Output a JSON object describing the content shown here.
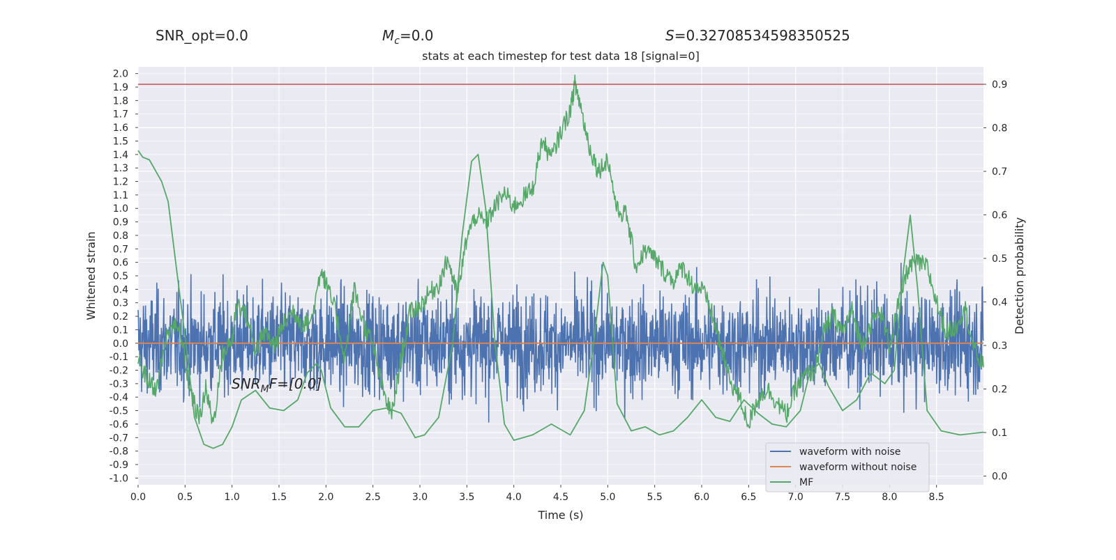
{
  "header": {
    "snr_opt": "SNR_opt=0.0",
    "mc_prefix": "M",
    "mc_sub": "c",
    "mc_value": "=0.0",
    "s_prefix": "S",
    "s_value": "=0.32708534598350525"
  },
  "chart_data": {
    "type": "line",
    "title": "stats at each timestep for test data 18 [signal=0]",
    "xlabel": "Time (s)",
    "ylabel_left": "Whitened strain",
    "ylabel_right": "Detection probability",
    "xlim": [
      0.0,
      9.0
    ],
    "x_ticks": [
      "0.0",
      "0.5",
      "1.0",
      "1.5",
      "2.0",
      "2.5",
      "3.0",
      "3.5",
      "4.0",
      "4.5",
      "5.0",
      "5.5",
      "6.0",
      "6.5",
      "7.0",
      "7.5",
      "8.0",
      "8.5"
    ],
    "left_ylim": [
      -1.05,
      2.05
    ],
    "left_ticks": [
      "-1.0",
      "-0.9",
      "-0.8",
      "-0.7",
      "-0.6",
      "-0.5",
      "-0.4",
      "-0.3",
      "-0.2",
      "-0.1",
      "0.0",
      "0.1",
      "0.2",
      "0.3",
      "0.4",
      "0.5",
      "0.6",
      "0.7",
      "0.8",
      "0.9",
      "1.0",
      "1.1",
      "1.2",
      "1.3",
      "1.4",
      "1.5",
      "1.6",
      "1.7",
      "1.8",
      "1.9",
      "2.0"
    ],
    "right_ylim": [
      -0.02,
      0.94
    ],
    "right_ticks": [
      "0.0",
      "0.1",
      "0.2",
      "0.3",
      "0.4",
      "0.5",
      "0.6",
      "0.7",
      "0.8",
      "0.9"
    ],
    "threshold": 0.9,
    "grid": true,
    "legend_position": "lower-right",
    "annotation": {
      "main": "SNR",
      "sub": "M",
      "rest": "F=[0.0]"
    },
    "colors": {
      "background": "#eaeaf2",
      "grid": "#ffffff",
      "waveform_noise": "#4c72b0",
      "waveform_clean": "#dd8452",
      "mf": "#55a868",
      "threshold": "#c44e52"
    },
    "series": [
      {
        "name": "waveform with noise",
        "axis": "left",
        "description_envelope": {
          "center": 0.0,
          "amplitude": 0.35,
          "max_spike": 0.85
        }
      },
      {
        "name": "waveform without noise",
        "axis": "left",
        "x": [
          0.0,
          9.0
        ],
        "y": [
          0.0,
          0.0
        ]
      },
      {
        "name": "MF",
        "axis": "left",
        "x": [
          0.0,
          0.05,
          0.12,
          0.25,
          0.32,
          0.4,
          0.5,
          0.6,
          0.7,
          0.8,
          0.9,
          1.0,
          1.1,
          1.25,
          1.4,
          1.55,
          1.7,
          1.8,
          1.9,
          1.95,
          2.05,
          2.2,
          2.35,
          2.5,
          2.65,
          2.8,
          2.95,
          3.05,
          3.2,
          3.35,
          3.45,
          3.55,
          3.62,
          3.7,
          3.8,
          3.9,
          4.0,
          4.2,
          4.4,
          4.6,
          4.75,
          4.85,
          4.95,
          5.0,
          5.1,
          5.25,
          5.4,
          5.55,
          5.7,
          5.85,
          6.0,
          6.15,
          6.3,
          6.45,
          6.6,
          6.75,
          6.9,
          7.05,
          7.15,
          7.25,
          7.35,
          7.5,
          7.65,
          7.8,
          7.95,
          8.05,
          8.15,
          8.22,
          8.3,
          8.4,
          8.55,
          8.75,
          9.0
        ],
        "y": [
          1.43,
          1.38,
          1.36,
          1.2,
          1.05,
          0.6,
          0.05,
          -0.55,
          -0.75,
          -0.78,
          -0.75,
          -0.62,
          -0.42,
          -0.35,
          -0.48,
          -0.5,
          -0.42,
          -0.22,
          -0.15,
          -0.2,
          -0.48,
          -0.62,
          -0.62,
          -0.5,
          -0.48,
          -0.52,
          -0.7,
          -0.68,
          -0.55,
          0.0,
          0.8,
          1.35,
          1.4,
          1.0,
          0.0,
          -0.6,
          -0.72,
          -0.68,
          -0.6,
          -0.68,
          -0.5,
          0.0,
          0.6,
          0.5,
          -0.45,
          -0.65,
          -0.62,
          -0.68,
          -0.65,
          -0.55,
          -0.42,
          -0.55,
          -0.58,
          -0.42,
          -0.52,
          -0.6,
          -0.62,
          -0.5,
          -0.22,
          -0.15,
          -0.32,
          -0.5,
          -0.42,
          -0.22,
          -0.3,
          -0.2,
          0.55,
          0.95,
          0.4,
          -0.5,
          -0.65,
          -0.68,
          -0.66
        ]
      },
      {
        "name": "Detection probability",
        "axis": "right",
        "x": [
          0.0,
          0.1,
          0.2,
          0.28,
          0.35,
          0.45,
          0.55,
          0.65,
          0.72,
          0.8,
          0.9,
          1.0,
          1.05,
          1.15,
          1.25,
          1.35,
          1.45,
          1.55,
          1.65,
          1.75,
          1.85,
          1.95,
          2.0,
          2.1,
          2.2,
          2.3,
          2.4,
          2.5,
          2.6,
          2.7,
          2.8,
          2.9,
          3.0,
          3.1,
          3.2,
          3.3,
          3.4,
          3.5,
          3.6,
          3.7,
          3.8,
          3.9,
          4.0,
          4.1,
          4.2,
          4.3,
          4.4,
          4.5,
          4.6,
          4.65,
          4.7,
          4.8,
          4.9,
          5.0,
          5.1,
          5.2,
          5.3,
          5.4,
          5.5,
          5.6,
          5.7,
          5.8,
          5.9,
          6.0,
          6.1,
          6.2,
          6.3,
          6.4,
          6.5,
          6.6,
          6.7,
          6.8,
          6.9,
          7.0,
          7.1,
          7.2,
          7.3,
          7.4,
          7.5,
          7.6,
          7.7,
          7.8,
          7.9,
          8.0,
          8.1,
          8.2,
          8.3,
          8.4,
          8.5,
          8.6,
          8.7,
          8.8,
          8.9,
          9.0
        ],
        "y": [
          0.27,
          0.22,
          0.2,
          0.3,
          0.35,
          0.33,
          0.2,
          0.13,
          0.2,
          0.12,
          0.28,
          0.31,
          0.4,
          0.37,
          0.29,
          0.33,
          0.3,
          0.35,
          0.38,
          0.35,
          0.36,
          0.48,
          0.44,
          0.38,
          0.27,
          0.43,
          0.35,
          0.3,
          0.2,
          0.14,
          0.27,
          0.38,
          0.39,
          0.42,
          0.44,
          0.5,
          0.41,
          0.55,
          0.6,
          0.58,
          0.62,
          0.65,
          0.62,
          0.64,
          0.66,
          0.77,
          0.73,
          0.79,
          0.84,
          0.9,
          0.86,
          0.76,
          0.7,
          0.73,
          0.61,
          0.6,
          0.48,
          0.52,
          0.5,
          0.47,
          0.45,
          0.48,
          0.44,
          0.43,
          0.38,
          0.3,
          0.22,
          0.18,
          0.12,
          0.18,
          0.2,
          0.17,
          0.14,
          0.2,
          0.23,
          0.24,
          0.33,
          0.37,
          0.33,
          0.38,
          0.3,
          0.35,
          0.38,
          0.3,
          0.4,
          0.48,
          0.49,
          0.48,
          0.4,
          0.33,
          0.34,
          0.39,
          0.29,
          0.25
        ]
      }
    ]
  }
}
